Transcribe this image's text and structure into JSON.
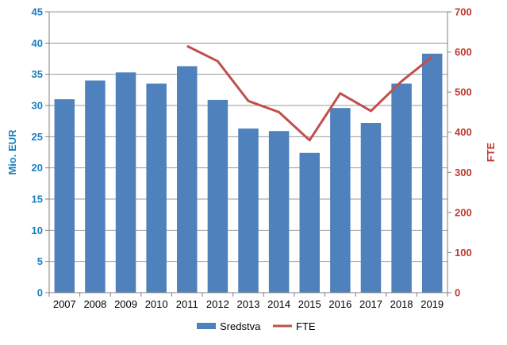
{
  "chart_data": {
    "type": "bar+line",
    "categories": [
      "2007",
      "2008",
      "2009",
      "2010",
      "2011",
      "2012",
      "2013",
      "2014",
      "2015",
      "2016",
      "2017",
      "2018",
      "2019"
    ],
    "series": [
      {
        "name": "Sredstva",
        "type": "bar",
        "axis": "left",
        "values": [
          31.0,
          34.0,
          35.3,
          33.5,
          36.3,
          30.9,
          26.3,
          25.9,
          22.4,
          29.6,
          27.2,
          33.5,
          38.3
        ]
      },
      {
        "name": "FTE",
        "type": "line",
        "axis": "right",
        "values": [
          null,
          null,
          null,
          null,
          615,
          577,
          478,
          450,
          380,
          497,
          453,
          527,
          588
        ]
      }
    ],
    "ylabel_left": "Mio. EUR",
    "ylabel_right": "FTE",
    "ylim_left": [
      0,
      45
    ],
    "ylim_right": [
      0,
      700
    ],
    "yticks_left": [
      0,
      5,
      10,
      15,
      20,
      25,
      30,
      35,
      40,
      45
    ],
    "yticks_right": [
      0,
      100,
      200,
      300,
      400,
      500,
      600,
      700
    ],
    "grid": true,
    "legend": "bottom",
    "colors": {
      "bar": "#4f81bd",
      "line": "#c0504d",
      "left_axis_text": "#1b7fbf",
      "right_axis_text": "#c0392b"
    }
  }
}
